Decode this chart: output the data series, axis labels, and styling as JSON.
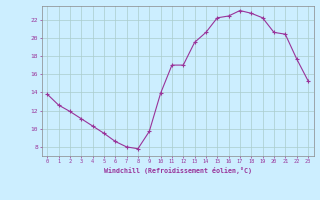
{
  "x": [
    0,
    1,
    2,
    3,
    4,
    5,
    6,
    7,
    8,
    9,
    10,
    11,
    12,
    13,
    14,
    15,
    16,
    17,
    18,
    19,
    20,
    21,
    22,
    23
  ],
  "y": [
    13.8,
    12.6,
    11.9,
    11.1,
    10.3,
    9.5,
    8.6,
    8.0,
    7.8,
    9.7,
    13.9,
    17.0,
    17.0,
    19.5,
    20.6,
    22.2,
    22.4,
    23.0,
    22.7,
    22.2,
    20.6,
    20.4,
    17.7,
    15.3
  ],
  "line_color": "#993399",
  "marker": "+",
  "marker_size": 3,
  "xlabel": "Windchill (Refroidissement éolien,°C)",
  "ylabel_ticks": [
    8,
    10,
    12,
    14,
    16,
    18,
    20,
    22
  ],
  "xticks": [
    0,
    1,
    2,
    3,
    4,
    5,
    6,
    7,
    8,
    9,
    10,
    11,
    12,
    13,
    14,
    15,
    16,
    17,
    18,
    19,
    20,
    21,
    22,
    23
  ],
  "ylim": [
    7.0,
    23.5
  ],
  "xlim": [
    -0.5,
    23.5
  ],
  "bg_color": "#cceeff",
  "grid_color": "#aacccc"
}
